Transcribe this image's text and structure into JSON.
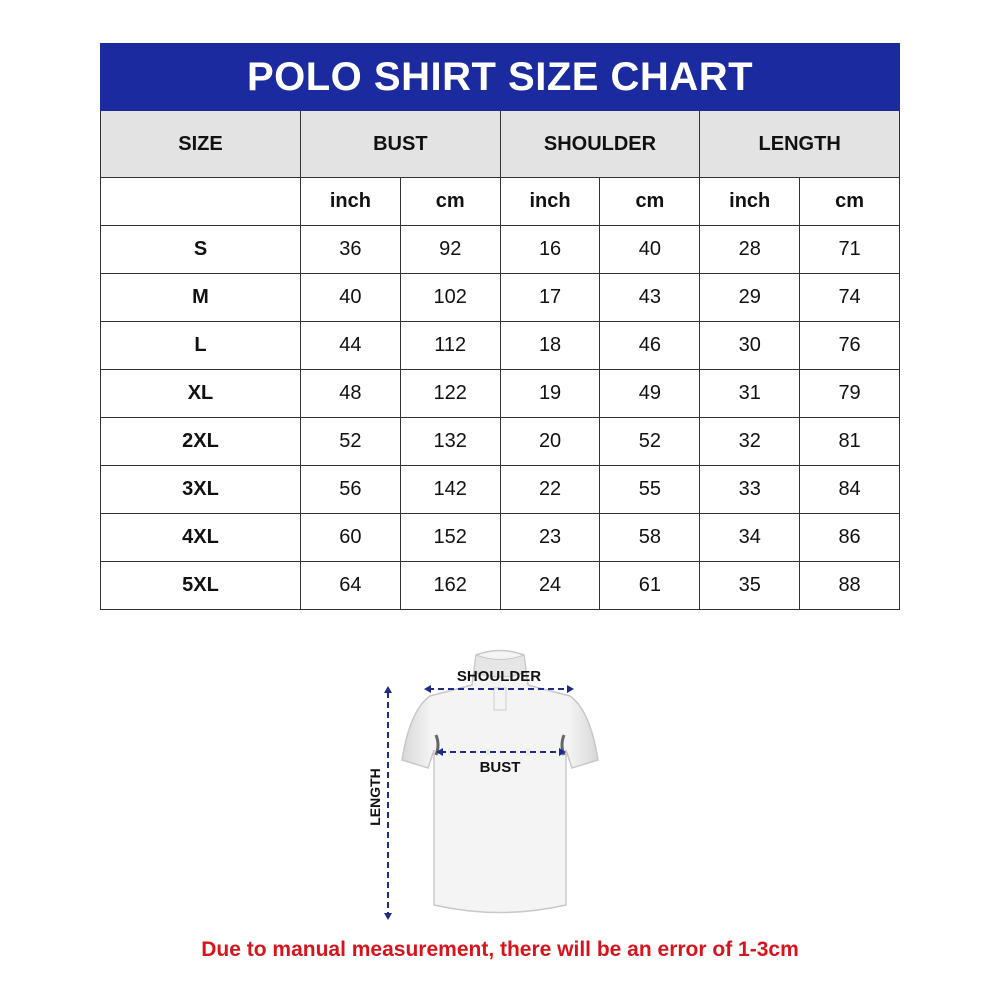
{
  "title": "POLO SHIRT SIZE CHART",
  "headers": [
    "SIZE",
    "BUST",
    "SHOULDER",
    "LENGTH"
  ],
  "units": [
    "inch",
    "cm",
    "inch",
    "cm",
    "inch",
    "cm"
  ],
  "rows": [
    [
      "S",
      "36",
      "92",
      "16",
      "40",
      "28",
      "71"
    ],
    [
      "M",
      "40",
      "102",
      "17",
      "43",
      "29",
      "74"
    ],
    [
      "L",
      "44",
      "112",
      "18",
      "46",
      "30",
      "76"
    ],
    [
      "XL",
      "48",
      "122",
      "19",
      "49",
      "31",
      "79"
    ],
    [
      "2XL",
      "52",
      "132",
      "20",
      "52",
      "32",
      "81"
    ],
    [
      "3XL",
      "56",
      "142",
      "22",
      "55",
      "33",
      "84"
    ],
    [
      "4XL",
      "60",
      "152",
      "23",
      "58",
      "34",
      "86"
    ],
    [
      "5XL",
      "64",
      "162",
      "24",
      "61",
      "35",
      "88"
    ]
  ],
  "diagram": {
    "shoulder": "SHOULDER",
    "bust": "BUST",
    "length": "LENGTH"
  },
  "note": "Due to manual measurement, there will be an error of 1-3cm",
  "colors": {
    "title_bg": "#1b2a9e",
    "header_bg": "#e3e3e3",
    "arrow": "#1f2a8c",
    "note": "#d7141c"
  }
}
